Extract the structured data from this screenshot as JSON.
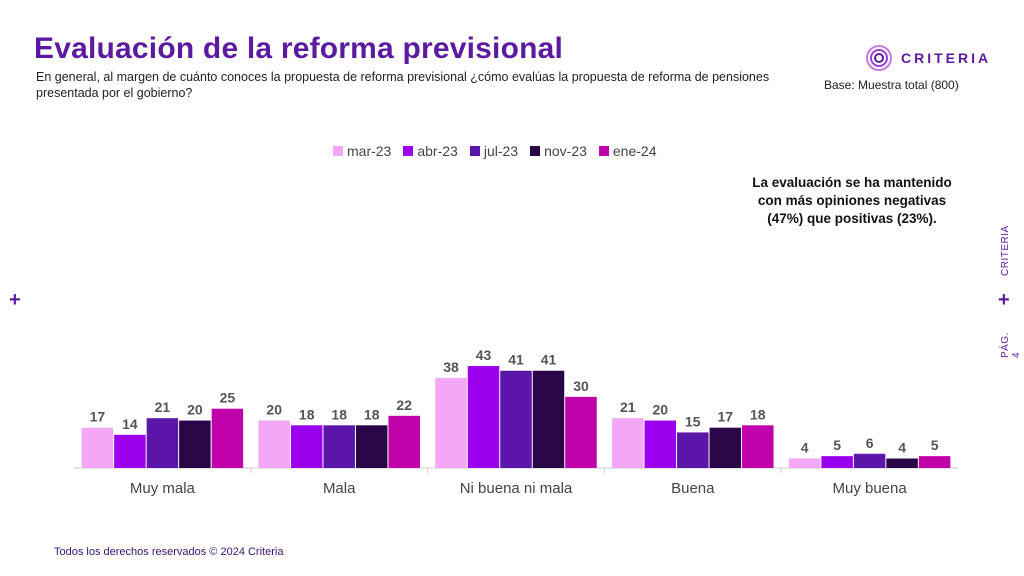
{
  "header": {
    "title": "Evaluación de la reforma previsional",
    "subtitle": "En general, al margen de cuánto conoces la propuesta de reforma previsional ¿cómo evalúas la propuesta de reforma de pensiones presentada por el gobierno?",
    "base": "Base: Muestra total (800)"
  },
  "logo": {
    "text": "CRITERIA"
  },
  "side": {
    "brand": "CRITERIA",
    "page": "PÁG. 4"
  },
  "note": "La evaluación se ha mantenido con más opiniones negativas (47%) que positivas (23%).",
  "footer": "Todos los derechos reservados © 2024 Criteria",
  "colors": {
    "brand": "#5b1a9f"
  },
  "chart_data": {
    "type": "bar",
    "title": "",
    "xlabel": "",
    "ylabel": "",
    "ylim": [
      0,
      45
    ],
    "grid": false,
    "legend_position": "top-center",
    "categories": [
      "Muy mala",
      "Mala",
      "Ni buena ni mala",
      "Buena",
      "Muy buena"
    ],
    "series": [
      {
        "name": "mar-23",
        "color": "#f4a6f7",
        "values": [
          17,
          20,
          38,
          21,
          4
        ]
      },
      {
        "name": "abr-23",
        "color": "#9b00ee",
        "values": [
          14,
          18,
          43,
          20,
          5
        ]
      },
      {
        "name": "jul-23",
        "color": "#5a16a8",
        "values": [
          21,
          18,
          41,
          15,
          6
        ]
      },
      {
        "name": "nov-23",
        "color": "#2a0548",
        "values": [
          20,
          18,
          41,
          17,
          4
        ]
      },
      {
        "name": "ene-24",
        "color": "#c000a8",
        "values": [
          25,
          22,
          30,
          18,
          5
        ]
      }
    ]
  }
}
